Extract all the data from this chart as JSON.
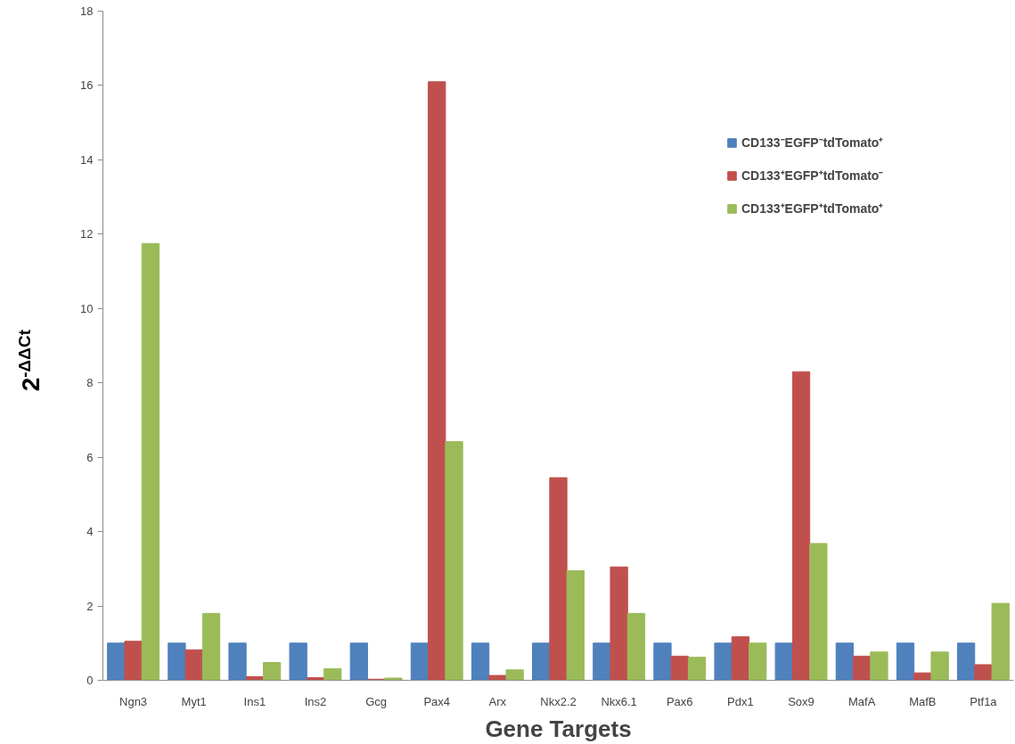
{
  "chart_data": {
    "type": "bar",
    "xlabel": "Gene Targets",
    "ylabel": "2$^{-ΔΔCt}$",
    "categories": [
      "Ngn3",
      "Myt1",
      "Ins1",
      "Ins2",
      "Gcg",
      "Pax4",
      "Arx",
      "Nkx2.2",
      "Nkx6.1",
      "Pax6",
      "Pdx1",
      "Sox9",
      "MafA",
      "MafB",
      "Ptf1a"
    ],
    "series": [
      {
        "name": "CD133⁻EGFP⁻tdTomato⁺",
        "color": "#4f81bd",
        "values": [
          1,
          1,
          1,
          1,
          1,
          1,
          1,
          1,
          1,
          1,
          1,
          1,
          1,
          1,
          1
        ]
      },
      {
        "name": "CD133⁺EGFP⁺tdTomato⁻",
        "color": "#c0504d",
        "values": [
          1.05,
          0.82,
          0.1,
          0.07,
          0.03,
          16.1,
          0.13,
          5.45,
          3.05,
          0.65,
          1.17,
          8.3,
          0.65,
          0.2,
          0.42
        ]
      },
      {
        "name": "CD133⁺EGFP⁺tdTomato⁺",
        "color": "#9bbb59",
        "values": [
          11.75,
          1.8,
          0.48,
          0.31,
          0.06,
          6.42,
          0.28,
          2.95,
          1.8,
          0.62,
          1.0,
          3.68,
          0.76,
          0.76,
          2.07
        ]
      }
    ],
    "ylim": [
      0,
      18
    ],
    "yticks": [
      0,
      2,
      4,
      6,
      8,
      10,
      12,
      14,
      16,
      18
    ],
    "grid": false,
    "legend": "top right"
  }
}
